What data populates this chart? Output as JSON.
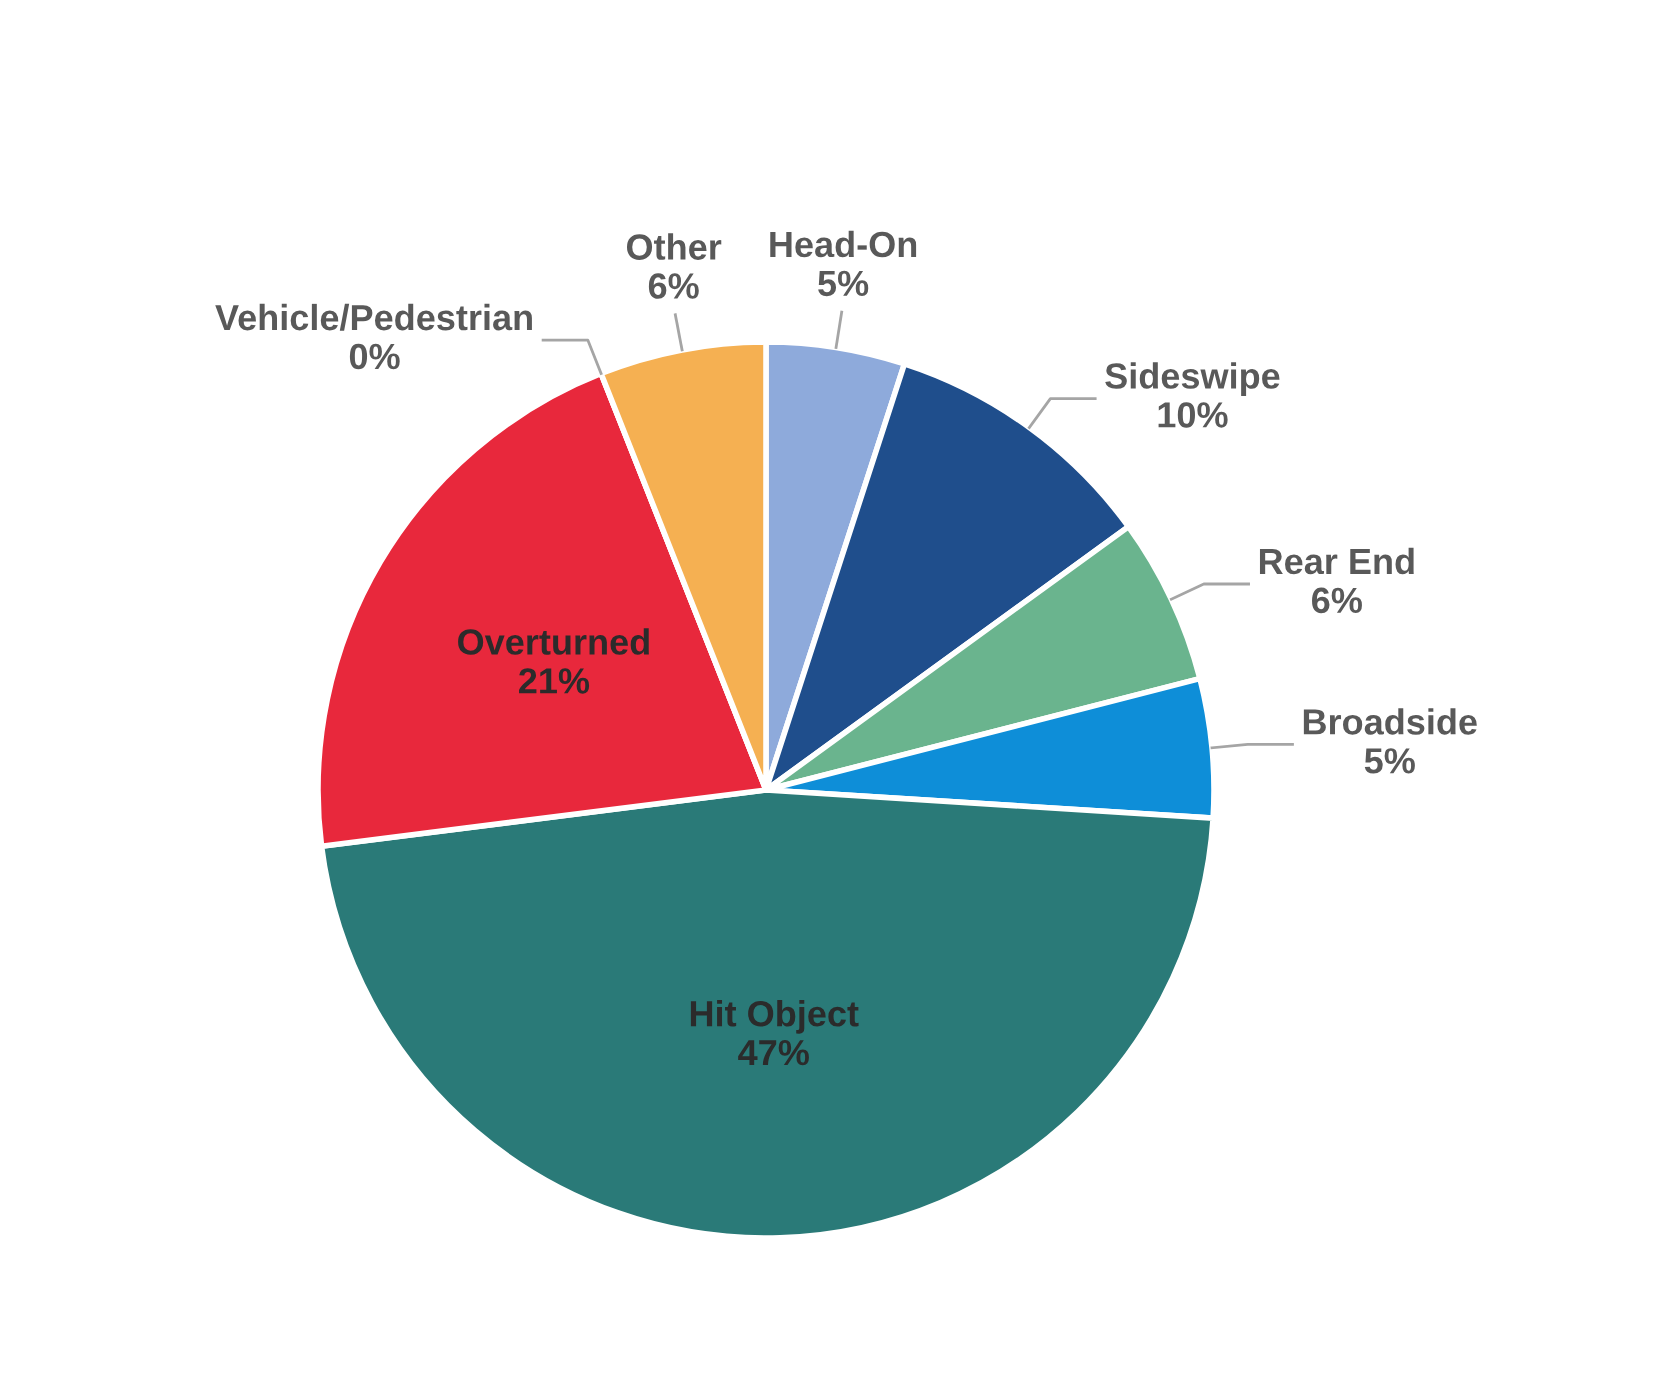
{
  "chart_data": {
    "type": "pie",
    "categories": [
      "Head-On",
      "Sideswipe",
      "Rear End",
      "Broadside",
      "Hit Object",
      "Overturned",
      "Vehicle/Pedestrian",
      "Other"
    ],
    "values": [
      5,
      10,
      6,
      5,
      47,
      21,
      0,
      6
    ],
    "colors": [
      "#8eaadb",
      "#1f4e8c",
      "#6ab48e",
      "#0e8ed8",
      "#2a7a78",
      "#e8283c",
      "#a5a5a5",
      "#f5b052"
    ],
    "value_labels": [
      "5%",
      "10%",
      "6%",
      "5%",
      "47%",
      "21%",
      "0%",
      "6%"
    ]
  }
}
